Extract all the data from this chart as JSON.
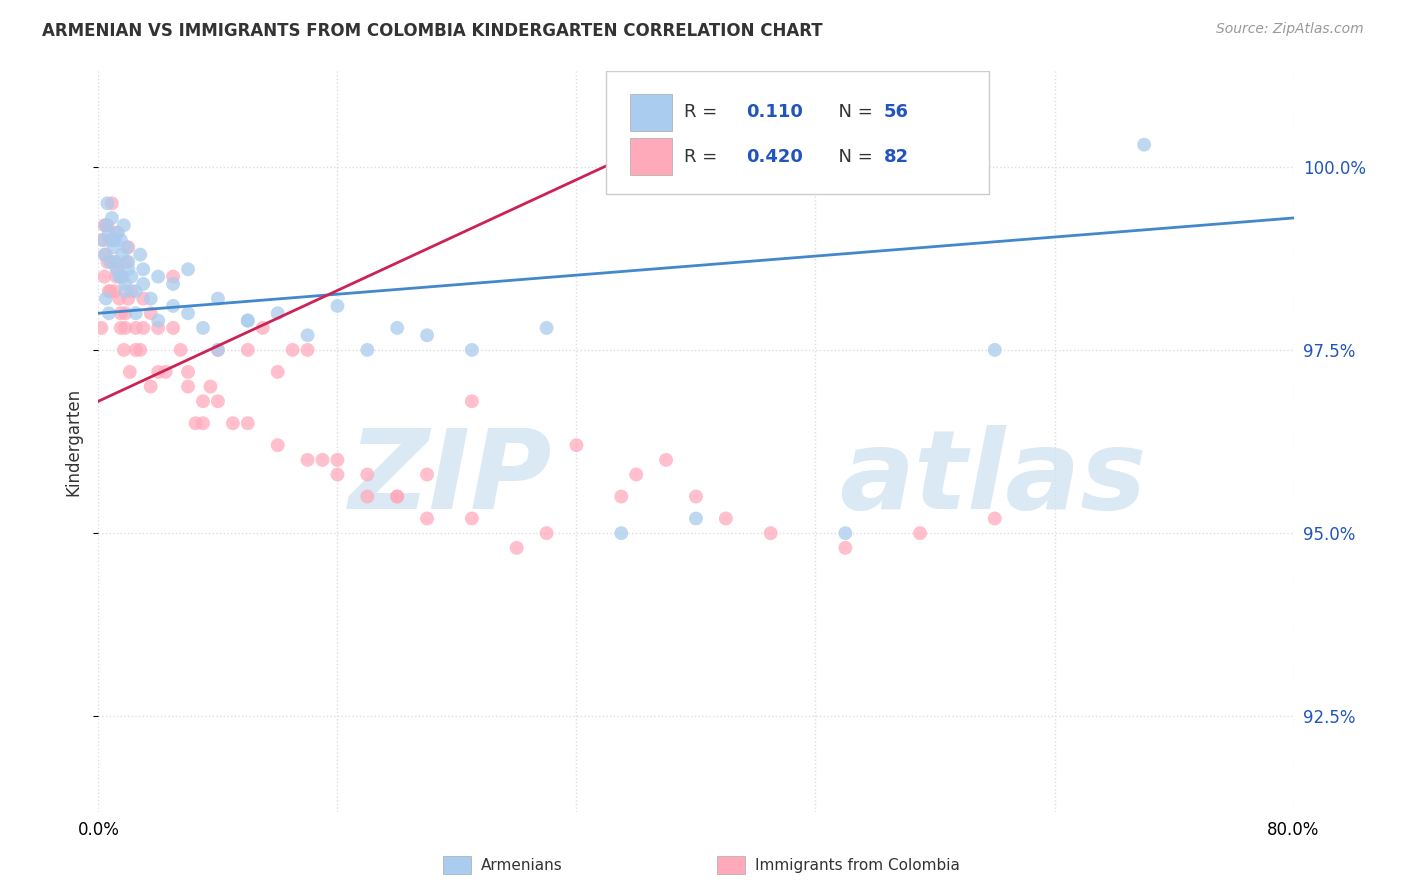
{
  "title": "ARMENIAN VS IMMIGRANTS FROM COLOMBIA KINDERGARTEN CORRELATION CHART",
  "source": "Source: ZipAtlas.com",
  "ylabel": "Kindergarten",
  "ytick_labels": [
    "92.5%",
    "95.0%",
    "97.5%",
    "100.0%"
  ],
  "ytick_values": [
    92.5,
    95.0,
    97.5,
    100.0
  ],
  "xmin": 0.0,
  "xmax": 80.0,
  "ymin": 91.2,
  "ymax": 101.3,
  "blue_color": "#aaccee",
  "pink_color": "#ffaabb",
  "trendline_blue_color": "#4488cc",
  "trendline_pink_color": "#cc2255",
  "grid_color": "#dddddd",
  "armenians_x": [
    0.3,
    0.4,
    0.5,
    0.6,
    0.7,
    0.8,
    0.9,
    1.0,
    1.1,
    1.2,
    1.3,
    1.4,
    1.5,
    1.6,
    1.7,
    1.8,
    1.9,
    2.0,
    2.2,
    2.5,
    2.8,
    3.0,
    3.5,
    4.0,
    5.0,
    6.0,
    7.0,
    8.0,
    10.0,
    12.0,
    14.0,
    16.0,
    18.0,
    20.0,
    22.0,
    25.0,
    30.0,
    35.0,
    40.0,
    50.0,
    60.0,
    70.0,
    0.5,
    0.7,
    1.0,
    1.2,
    1.5,
    1.8,
    2.0,
    2.5,
    3.0,
    4.0,
    5.0,
    6.0,
    8.0,
    10.0
  ],
  "armenians_y": [
    99.0,
    98.8,
    99.2,
    99.5,
    99.1,
    98.7,
    99.3,
    98.9,
    99.0,
    98.6,
    99.1,
    98.5,
    99.0,
    98.8,
    99.2,
    98.4,
    98.9,
    98.7,
    98.5,
    98.3,
    98.8,
    98.6,
    98.2,
    98.5,
    98.4,
    98.6,
    97.8,
    98.2,
    97.9,
    98.0,
    97.7,
    98.1,
    97.5,
    97.8,
    97.7,
    97.5,
    97.8,
    95.0,
    95.2,
    95.0,
    97.5,
    100.3,
    98.2,
    98.0,
    99.0,
    98.7,
    98.5,
    98.3,
    98.6,
    98.0,
    98.4,
    97.9,
    98.1,
    98.0,
    97.5,
    97.9
  ],
  "colombia_x": [
    0.2,
    0.3,
    0.4,
    0.5,
    0.6,
    0.7,
    0.8,
    0.9,
    1.0,
    1.1,
    1.2,
    1.3,
    1.4,
    1.5,
    1.6,
    1.7,
    1.8,
    1.9,
    2.0,
    2.1,
    2.2,
    2.5,
    2.8,
    3.0,
    3.5,
    4.0,
    4.5,
    5.0,
    5.5,
    6.0,
    6.5,
    7.0,
    7.5,
    8.0,
    9.0,
    10.0,
    11.0,
    12.0,
    13.0,
    14.0,
    15.0,
    16.0,
    18.0,
    20.0,
    22.0,
    25.0,
    0.4,
    0.6,
    0.8,
    1.0,
    1.2,
    1.5,
    1.8,
    2.0,
    2.5,
    3.0,
    3.5,
    4.0,
    5.0,
    6.0,
    7.0,
    8.0,
    10.0,
    12.0,
    14.0,
    16.0,
    18.0,
    20.0,
    22.0,
    25.0,
    28.0,
    30.0,
    32.0,
    35.0,
    36.0,
    38.0,
    40.0,
    42.0,
    45.0,
    50.0,
    55.0,
    60.0
  ],
  "colombia_y": [
    97.8,
    99.0,
    98.5,
    98.8,
    99.2,
    98.3,
    99.0,
    99.5,
    98.7,
    98.3,
    99.1,
    98.6,
    98.2,
    97.8,
    98.5,
    97.5,
    98.0,
    98.7,
    98.9,
    97.2,
    98.3,
    97.8,
    97.5,
    98.2,
    97.0,
    97.8,
    97.2,
    98.5,
    97.5,
    97.2,
    96.5,
    96.8,
    97.0,
    97.5,
    96.5,
    97.5,
    97.8,
    97.2,
    97.5,
    97.5,
    96.0,
    96.0,
    95.8,
    95.5,
    95.2,
    96.8,
    99.2,
    98.7,
    98.3,
    99.0,
    98.5,
    98.0,
    97.8,
    98.2,
    97.5,
    97.8,
    98.0,
    97.2,
    97.8,
    97.0,
    96.5,
    96.8,
    96.5,
    96.2,
    96.0,
    95.8,
    95.5,
    95.5,
    95.8,
    95.2,
    94.8,
    95.0,
    96.2,
    95.5,
    95.8,
    96.0,
    95.5,
    95.2,
    95.0,
    94.8,
    95.0,
    95.2
  ],
  "trendline_blue_x0": 0.0,
  "trendline_blue_x1": 80.0,
  "trendline_blue_y0": 98.0,
  "trendline_blue_y1": 99.3,
  "trendline_pink_x0": 0.0,
  "trendline_pink_x1": 36.0,
  "trendline_pink_y0": 96.8,
  "trendline_pink_y1": 100.2
}
